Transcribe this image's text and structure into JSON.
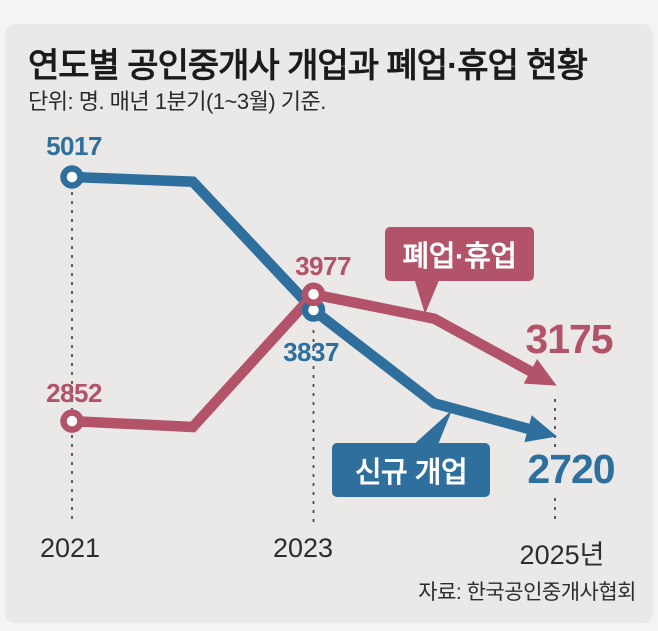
{
  "title": "연도별 공인중개사 개업과 폐업·휴업 현황",
  "subtitle": "단위: 명. 매년 1분기(1~3월) 기준.",
  "source": "자료: 한국공인중개사협회",
  "colors": {
    "blue": "#2f6f9e",
    "red": "#b35369",
    "panel_background": "#ebe9e7",
    "page_background": "#f5f4f2",
    "dashed_line": "#444444",
    "marker_center": "#ffffff",
    "title_text": "#1b1b1b"
  },
  "x_axis": {
    "labels": [
      "2021",
      "2023",
      "2025년"
    ]
  },
  "value_labels": {
    "blue_2021": "5017",
    "blue_2023": "3837",
    "blue_2025": "2720",
    "red_2021": "2852",
    "red_2023": "3977",
    "red_2025": "3175"
  },
  "legend": {
    "red_label": "폐업·휴업",
    "blue_label": "신규 개업"
  },
  "chart_data": {
    "type": "line",
    "title": "연도별 공인중개사 개업과 폐업·휴업 현황",
    "unit": "명",
    "x": [
      2021,
      2022,
      2023,
      2024,
      2025
    ],
    "labeled_years": [
      2021,
      2023,
      2025
    ],
    "estimated_years": [
      2022,
      2024
    ],
    "series": [
      {
        "name": "신규 개업",
        "color_key": "blue",
        "values": [
          5017,
          4975,
          3837,
          3010,
          2720
        ]
      },
      {
        "name": "폐업·휴업",
        "color_key": "red",
        "values": [
          2852,
          2800,
          3977,
          3760,
          3175
        ]
      }
    ],
    "ylim": [
      2500,
      5200
    ],
    "grid": false,
    "legend_position": "inline-callouts",
    "note": "2022 and 2024 values are unlabeled bends estimated from the plotted lines; 2025 points end in arrowheads"
  }
}
